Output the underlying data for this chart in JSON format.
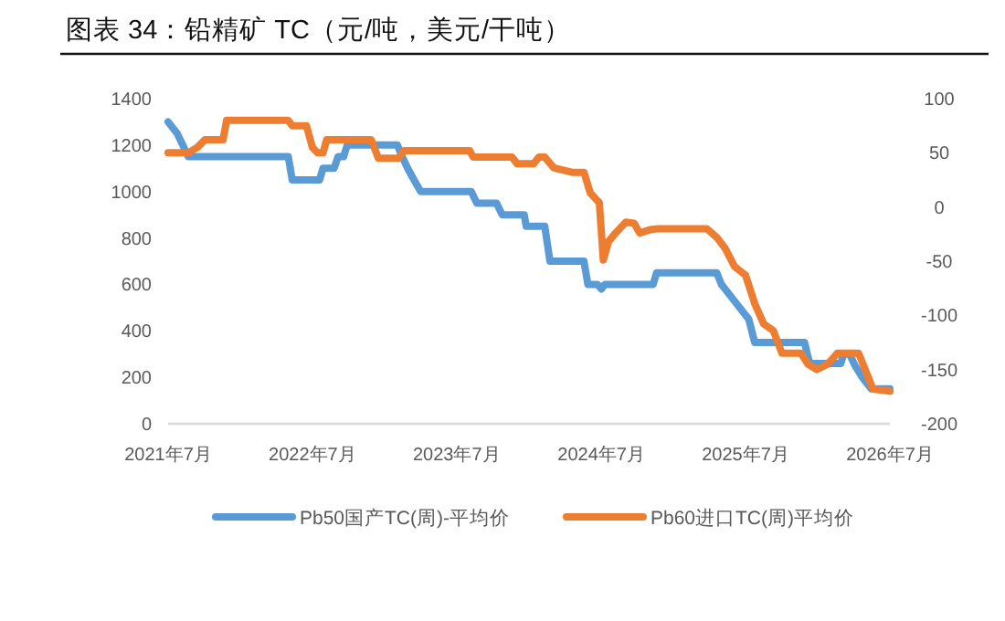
{
  "chart_data": {
    "type": "line",
    "title": "图表 34：铅精矿 TC（元/吨，美元/干吨）",
    "xlim": [
      "2021-07",
      "2026-07"
    ],
    "xticks": [
      {
        "value": "2021-07",
        "label": "2021年7月"
      },
      {
        "value": "2022-07",
        "label": "2022年7月"
      },
      {
        "value": "2023-07",
        "label": "2023年7月"
      },
      {
        "value": "2024-07",
        "label": "2024年7月"
      },
      {
        "value": "2025-07",
        "label": "2025年7月"
      },
      {
        "value": "2026-07",
        "label": "2026年7月"
      }
    ],
    "ylim": [
      0,
      1400
    ],
    "yticks": [
      0,
      200,
      400,
      600,
      800,
      1000,
      1200,
      1400
    ],
    "y2lim": [
      -200,
      100
    ],
    "y2ticks": [
      -200,
      -150,
      -100,
      -50,
      0,
      50,
      100
    ],
    "grid": false,
    "legend": "bottom",
    "series": [
      {
        "name": "Pb50国产TC(周)-平均价",
        "color": "#5b9bd5",
        "x": [
          "2021-07-01",
          "2021-07-24",
          "2021-08-21",
          "2022-05-01",
          "2022-05-11",
          "2022-07-19",
          "2022-07-28",
          "2022-08-25",
          "2022-09-04",
          "2022-09-18",
          "2022-09-27",
          "2023-02-01",
          "2023-02-13",
          "2023-02-27",
          "2023-03-15",
          "2023-04-01",
          "2023-08-07",
          "2023-08-21",
          "2023-10-10",
          "2023-10-24",
          "2023-12-19",
          "2023-12-24",
          "2024-02-09",
          "2024-02-22",
          "2024-05-18",
          "2024-05-28",
          "2024-06-21",
          "2024-07-01",
          "2024-07-10",
          "2024-11-09",
          "2024-11-18",
          "2025-04-19",
          "2025-05-01",
          "2025-05-24",
          "2025-06-16",
          "2025-07-09",
          "2025-07-24",
          "2025-11-27",
          "2025-12-10",
          "2026-02-27",
          "2026-03-06",
          "2026-03-21",
          "2026-04-04",
          "2026-04-22",
          "2026-05-15",
          "2026-07-01"
        ],
        "values": [
          1300,
          1250,
          1150,
          1150,
          1050,
          1050,
          1100,
          1100,
          1150,
          1150,
          1200,
          1200,
          1150,
          1100,
          1050,
          1000,
          1000,
          950,
          950,
          900,
          900,
          850,
          850,
          700,
          700,
          600,
          600,
          580,
          600,
          600,
          650,
          650,
          600,
          550,
          500,
          450,
          350,
          350,
          260,
          260,
          300,
          300,
          250,
          200,
          150,
          150
        ]
      },
      {
        "name": "Pb60进口TC(周)平均价",
        "color": "#ed7d31",
        "axis": "y2",
        "x": [
          "2021-07-01",
          "2021-08-21",
          "2021-09-13",
          "2021-10-02",
          "2021-11-17",
          "2021-11-26",
          "2022-05-01",
          "2022-05-11",
          "2022-06-16",
          "2022-07-01",
          "2022-07-14",
          "2022-07-28",
          "2022-08-06",
          "2022-11-27",
          "2022-12-15",
          "2023-02-04",
          "2023-02-18",
          "2023-08-03",
          "2023-08-12",
          "2023-11-18",
          "2023-12-01",
          "2024-01-12",
          "2024-01-25",
          "2024-02-09",
          "2024-03-03",
          "2024-04-18",
          "2024-05-18",
          "2024-06-03",
          "2024-06-26",
          "2024-07-06",
          "2024-07-19",
          "2024-08-06",
          "2024-09-01",
          "2024-09-22",
          "2024-10-06",
          "2024-11-01",
          "2024-11-22",
          "2025-03-25",
          "2025-04-19",
          "2025-05-10",
          "2025-06-03",
          "2025-07-01",
          "2025-07-24",
          "2025-08-16",
          "2025-09-09",
          "2025-10-01",
          "2025-11-18",
          "2025-12-06",
          "2025-12-28",
          "2026-01-25",
          "2026-02-18",
          "2026-04-13",
          "2026-05-06",
          "2026-05-19",
          "2026-07-01"
        ],
        "values": [
          50,
          50,
          55,
          62,
          62,
          80,
          80,
          75,
          75,
          55,
          50,
          50,
          62,
          62,
          45,
          45,
          52,
          52,
          46,
          46,
          40,
          40,
          46,
          46,
          36,
          32,
          32,
          13,
          4,
          -49,
          -32,
          -24,
          -14,
          -15,
          -24,
          -21,
          -20,
          -20,
          -28,
          -38,
          -55,
          -63,
          -89,
          -108,
          -114,
          -135,
          -135,
          -145,
          -150,
          -145,
          -135,
          -135,
          -156,
          -168,
          -170
        ]
      }
    ]
  }
}
